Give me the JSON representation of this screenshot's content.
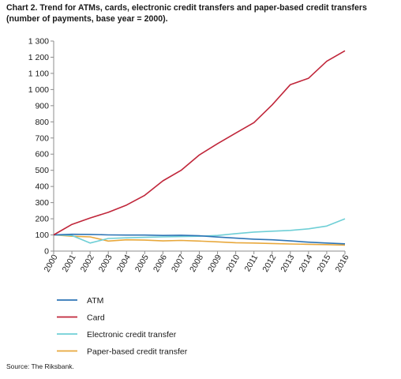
{
  "title": "Chart 2. Trend for ATMs, cards, electronic credit transfers and paper-based credit transfers (number of payments, base year = 2000).",
  "source": "Source: The Riksbank.",
  "chart_data": {
    "type": "line",
    "title": "Chart 2. Trend for ATMs, cards, electronic credit transfers and paper-based credit transfers (number of payments, base year = 2000).",
    "x": [
      "2000",
      "2001",
      "2002",
      "2003",
      "2004",
      "2005",
      "2006",
      "2007",
      "2008",
      "2009",
      "2010",
      "2011",
      "2012",
      "2013",
      "2014",
      "2015",
      "2016"
    ],
    "ylim": [
      0,
      1300
    ],
    "yticks": [
      0,
      100,
      200,
      300,
      400,
      500,
      600,
      700,
      800,
      900,
      1000,
      1100,
      1200,
      1300
    ],
    "ytick_labels": [
      "0",
      "100",
      "200",
      "300",
      "400",
      "500",
      "600",
      "700",
      "800",
      "900",
      "1 000",
      "1 100",
      "1 200",
      "1 300"
    ],
    "grid": false,
    "legend_position": "bottom",
    "series": [
      {
        "name": "ATM",
        "color": "#2e75b6",
        "values": [
          100,
          104,
          103,
          100,
          99,
          99,
          97,
          98,
          95,
          87,
          80,
          74,
          70,
          63,
          55,
          50,
          45
        ]
      },
      {
        "name": "Card",
        "color": "#c0263a",
        "values": [
          100,
          165,
          205,
          240,
          285,
          345,
          435,
          500,
          595,
          665,
          730,
          795,
          905,
          1030,
          1070,
          1175,
          1240
        ]
      },
      {
        "name": "Electronic credit transfer",
        "color": "#6fcfd6",
        "values": [
          100,
          97,
          50,
          78,
          82,
          85,
          88,
          90,
          92,
          97,
          108,
          118,
          123,
          128,
          138,
          155,
          200
        ]
      },
      {
        "name": "Paper-based credit transfer",
        "color": "#e8a83c",
        "values": [
          100,
          92,
          88,
          62,
          70,
          68,
          63,
          66,
          62,
          57,
          52,
          50,
          47,
          44,
          42,
          40,
          37
        ]
      }
    ]
  }
}
